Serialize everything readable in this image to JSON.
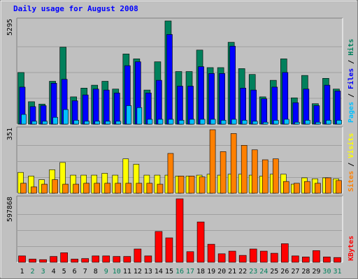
{
  "title": "Daily usage for August 2008",
  "colors": {
    "background": "#c0c0c0",
    "plot_background": "#c0c0c0",
    "title": "#0000ff",
    "hits": "#00805c",
    "files": "#0000ff",
    "pages": "#00c0ff",
    "visits": "#ffff00",
    "sites": "#ff8000",
    "kbytes": "#ff0000",
    "weekend_label": "#00805c",
    "weekday_label": "#000000"
  },
  "right_labels": {
    "top": [
      "Pages",
      "Files",
      "Hits"
    ],
    "middle": [
      "Sites",
      "Visits"
    ],
    "bottom": [
      "KBytes"
    ]
  },
  "chart_data": [
    {
      "type": "bar",
      "title": "Daily usage for August 2008",
      "panel": "hits-files-pages",
      "ymax_label": "5295",
      "ylim": [
        0,
        5295
      ],
      "categories": [
        "1",
        "2",
        "3",
        "4",
        "5",
        "6",
        "7",
        "8",
        "9",
        "10",
        "11",
        "12",
        "13",
        "14",
        "15",
        "16",
        "17",
        "18",
        "19",
        "20",
        "21",
        "22",
        "23",
        "24",
        "25",
        "26",
        "27",
        "28",
        "29",
        "30",
        "31"
      ],
      "weekend_days": [
        "2",
        "3",
        "9",
        "10",
        "16",
        "17",
        "23",
        "24",
        "30",
        "31"
      ],
      "series": [
        {
          "name": "Hits",
          "values": [
            2650,
            1150,
            1030,
            2200,
            3950,
            1400,
            1850,
            2000,
            2200,
            1800,
            3600,
            3350,
            1750,
            3200,
            5295,
            2700,
            2700,
            3800,
            2900,
            2900,
            4200,
            2850,
            2550,
            1400,
            2250,
            3350,
            1350,
            2500,
            1050,
            2350,
            1800
          ]
        },
        {
          "name": "Files",
          "values": [
            1900,
            900,
            950,
            2100,
            2300,
            1200,
            1500,
            1800,
            1750,
            1600,
            3000,
            3200,
            1600,
            2250,
            4600,
            1950,
            1950,
            2950,
            2600,
            2600,
            4000,
            1850,
            1750,
            1300,
            1900,
            2650,
            1100,
            1800,
            950,
            2000,
            1700
          ]
        },
        {
          "name": "Pages",
          "values": [
            500,
            150,
            150,
            350,
            750,
            200,
            150,
            150,
            150,
            150,
            950,
            850,
            250,
            250,
            250,
            200,
            250,
            250,
            250,
            200,
            250,
            200,
            150,
            100,
            200,
            250,
            100,
            200,
            100,
            200,
            200
          ]
        }
      ]
    },
    {
      "type": "bar",
      "panel": "visits-sites",
      "ymax_label": "351",
      "ylim": [
        0,
        351
      ],
      "categories": [
        "1",
        "2",
        "3",
        "4",
        "5",
        "6",
        "7",
        "8",
        "9",
        "10",
        "11",
        "12",
        "13",
        "14",
        "15",
        "16",
        "17",
        "18",
        "19",
        "20",
        "21",
        "22",
        "23",
        "24",
        "25",
        "26",
        "27",
        "28",
        "29",
        "30",
        "31"
      ],
      "series": [
        {
          "name": "Visits",
          "values": [
            115,
            95,
            75,
            130,
            170,
            100,
            100,
            100,
            110,
            100,
            190,
            160,
            100,
            100,
            100,
            95,
            95,
            100,
            105,
            100,
            105,
            105,
            100,
            95,
            105,
            105,
            50,
            85,
            80,
            85,
            80
          ]
        },
        {
          "name": "Sites",
          "values": [
            55,
            35,
            50,
            75,
            50,
            50,
            55,
            55,
            55,
            55,
            55,
            55,
            55,
            50,
            220,
            95,
            95,
            90,
            351,
            230,
            330,
            265,
            240,
            185,
            190,
            65,
            55,
            65,
            55,
            85,
            70
          ]
        }
      ]
    },
    {
      "type": "bar",
      "panel": "kbytes",
      "ymax_label": "597868",
      "ylim": [
        0,
        597868
      ],
      "categories": [
        "1",
        "2",
        "3",
        "4",
        "5",
        "6",
        "7",
        "8",
        "9",
        "10",
        "11",
        "12",
        "13",
        "14",
        "15",
        "16",
        "17",
        "18",
        "19",
        "20",
        "21",
        "22",
        "23",
        "24",
        "25",
        "26",
        "27",
        "28",
        "29",
        "30",
        "31"
      ],
      "series": [
        {
          "name": "KBytes",
          "values": [
            60000,
            30000,
            25000,
            55000,
            90000,
            30000,
            35000,
            60000,
            60000,
            55000,
            55000,
            125000,
            60000,
            290000,
            230000,
            597868,
            100000,
            380000,
            170000,
            80000,
            105000,
            65000,
            125000,
            105000,
            85000,
            175000,
            60000,
            50000,
            110000,
            50000,
            45000
          ]
        }
      ]
    }
  ]
}
